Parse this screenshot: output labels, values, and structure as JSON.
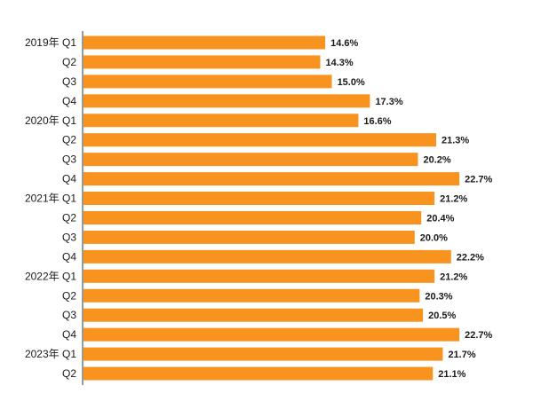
{
  "chart_data": {
    "type": "bar",
    "orientation": "horizontal",
    "title": "",
    "xlabel": "",
    "ylabel": "",
    "categories": [
      "2019年 Q1",
      "Q2",
      "Q3",
      "Q4",
      "2020年 Q1",
      "Q2",
      "Q3",
      "Q4",
      "2021年 Q1",
      "Q2",
      "Q3",
      "Q4",
      "2022年 Q1",
      "Q2",
      "Q3",
      "Q4",
      "2023年 Q1",
      "Q2"
    ],
    "values": [
      14.6,
      14.3,
      15.0,
      17.3,
      16.6,
      21.3,
      20.2,
      22.7,
      21.2,
      20.4,
      20.0,
      22.2,
      21.2,
      20.3,
      20.5,
      22.7,
      21.7,
      21.1
    ],
    "value_labels": [
      "14.6%",
      "14.3%",
      "15.0%",
      "17.3%",
      "16.6%",
      "21.3%",
      "20.2%",
      "22.7%",
      "21.2%",
      "20.4%",
      "20.0%",
      "22.2%",
      "21.2%",
      "20.3%",
      "20.5%",
      "22.7%",
      "21.7%",
      "21.1%"
    ],
    "unit": "%",
    "xlim": [
      0,
      23.5
    ],
    "grid": false,
    "legend": "none",
    "colors": {
      "bar": "#F7931E",
      "axis": "#333333",
      "text": "#1a1a1a"
    }
  }
}
